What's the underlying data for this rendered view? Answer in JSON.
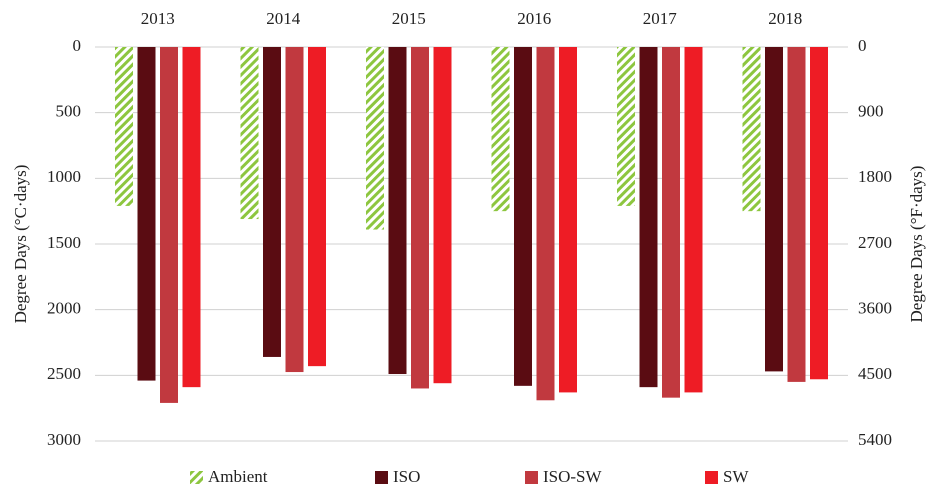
{
  "chart_data": {
    "type": "bar",
    "categories": [
      "2013",
      "2014",
      "2015",
      "2016",
      "2017",
      "2018"
    ],
    "series": [
      {
        "name": "Ambient",
        "color": "#8dc63f",
        "hatch": true,
        "values": [
          1210,
          1310,
          1390,
          1250,
          1210,
          1250
        ]
      },
      {
        "name": "ISO",
        "color": "#5a0c12",
        "values": [
          2540,
          2360,
          2490,
          2580,
          2590,
          2470
        ]
      },
      {
        "name": "ISO-SW",
        "color": "#c1393f",
        "values": [
          2710,
          2475,
          2600,
          2690,
          2670,
          2550
        ]
      },
      {
        "name": "SW",
        "color": "#ee1c25",
        "values": [
          2590,
          2430,
          2560,
          2630,
          2630,
          2530
        ]
      }
    ],
    "ylabel": "Degree Days (°C·days)",
    "y2label": "Degree Days (°F·days)",
    "ylim": [
      0,
      3000
    ],
    "yticks": [
      0,
      500,
      1000,
      1500,
      2000,
      2500,
      3000
    ],
    "y2lim": [
      0,
      5400
    ],
    "y2ticks": [
      0,
      900,
      1800,
      2700,
      3600,
      4500,
      5400
    ],
    "y_inverted": true,
    "grid": true,
    "legend": "bottom"
  }
}
